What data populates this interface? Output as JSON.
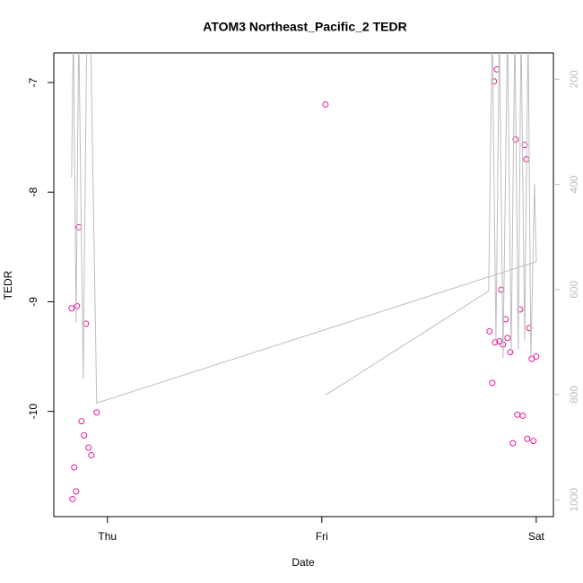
{
  "chart_data": {
    "type": "scatter",
    "title": "ATOM3 Northeast_Pacific_2 TEDR",
    "xlabel": "Date",
    "ylabel": "TEDR",
    "xlim": [
      0.75,
      3.08
    ],
    "xticks": [
      {
        "value": 1,
        "label": "Thu"
      },
      {
        "value": 2,
        "label": "Fri"
      },
      {
        "value": 3,
        "label": "Sat"
      }
    ],
    "ylim": [
      -10.96,
      -6.73
    ],
    "yticks": [
      -10,
      -9,
      -8,
      -7
    ],
    "y2lim": [
      1032,
      150
    ],
    "y2ticks": [
      200,
      400,
      600,
      800,
      1000
    ],
    "series": [
      {
        "type": "scatter",
        "color": "#e6199b",
        "x": [
          0.833,
          0.866,
          0.858,
          0.9,
          0.845,
          0.854,
          0.837,
          0.879,
          0.891,
          0.912,
          0.925,
          0.95,
          2.017,
          2.803,
          2.816,
          2.782,
          2.795,
          2.808,
          2.828,
          2.837,
          2.845,
          2.858,
          2.866,
          2.879,
          2.891,
          2.904,
          2.912,
          2.925,
          2.937,
          2.946,
          2.954,
          2.958,
          2.967,
          2.979,
          2.987,
          3.0
        ],
        "values": [
          -9.06,
          -8.32,
          -9.04,
          -9.2,
          -10.51,
          -10.73,
          -10.8,
          -10.09,
          -10.22,
          -10.33,
          -10.4,
          -10.01,
          -7.2,
          -6.99,
          -6.88,
          -9.27,
          -9.74,
          -9.37,
          -9.36,
          -8.89,
          -9.39,
          -9.16,
          -9.33,
          -9.46,
          -10.29,
          -7.52,
          -10.03,
          -9.07,
          -10.04,
          -7.57,
          -7.7,
          -10.25,
          -9.24,
          -9.52,
          -10.27,
          -9.5
        ]
      },
      {
        "type": "line",
        "axis": "y2",
        "color": "#bebebe",
        "x": [
          0.833,
          0.841,
          0.854,
          0.866,
          0.887,
          0.904,
          0.921,
          0.95,
          3.0,
          2.992,
          2.975,
          2.962,
          2.946,
          2.929,
          2.916,
          2.9,
          2.883,
          2.866,
          2.845,
          2.828,
          2.812,
          2.795,
          2.778,
          2.017
        ],
        "values": [
          387,
          100,
          663,
          100,
          770,
          100,
          100,
          816,
          547,
          399,
          731,
          100,
          697,
          100,
          714,
          100,
          723,
          100,
          731,
          100,
          697,
          100,
          603,
          801
        ]
      }
    ]
  }
}
